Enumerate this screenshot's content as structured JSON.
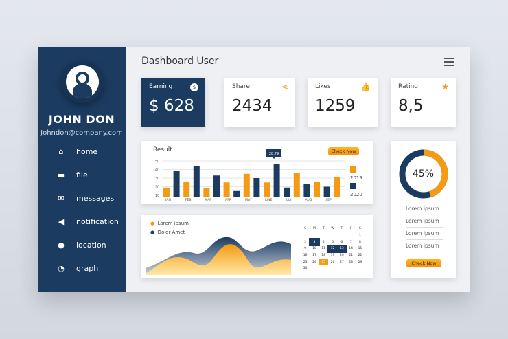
{
  "user": {
    "name": "JOHN DON",
    "email": "Johndon@company.com"
  },
  "nav": [
    {
      "label": "home",
      "icon": "home-icon",
      "g": "⌂"
    },
    {
      "label": "file",
      "icon": "folder-icon",
      "g": "▬"
    },
    {
      "label": "messages",
      "icon": "envelope-icon",
      "g": "✉"
    },
    {
      "label": "notification",
      "icon": "megaphone-icon",
      "g": "◀"
    },
    {
      "label": "location",
      "icon": "pin-icon",
      "g": "●"
    },
    {
      "label": "graph",
      "icon": "pie-chart-icon",
      "g": "◔"
    }
  ],
  "header": {
    "title": "Dashboard User"
  },
  "stats": [
    {
      "label": "Earning",
      "value": "$ 628",
      "icon": "dollar-icon",
      "g": "$"
    },
    {
      "label": "Share",
      "value": "2434",
      "icon": "share-icon",
      "g": "⋖"
    },
    {
      "label": "Likes",
      "value": "1259",
      "icon": "thumbs-up-icon",
      "g": "👍"
    },
    {
      "label": "Rating",
      "value": "8,5",
      "icon": "star-icon",
      "g": "★"
    }
  ],
  "colors": {
    "navy": "#1b3b61",
    "orange": "#f59a13"
  },
  "chart_data": {
    "type": "bar",
    "title": "Result",
    "categories": [
      "JAN",
      "FEB",
      "MAR",
      "APR",
      "MAY",
      "JUNE",
      "JULY",
      "AUG",
      "SEP"
    ],
    "bars": [
      [
        "2019",
        19
      ],
      [
        "2020",
        38
      ],
      [
        "2019",
        26
      ],
      [
        "2020",
        44
      ],
      [
        "2019",
        18
      ],
      [
        "2020",
        33
      ],
      [
        "2019",
        25
      ],
      [
        "2020",
        15
      ],
      [
        "2019",
        35
      ],
      [
        "2020",
        30
      ],
      [
        "2019",
        25
      ],
      [
        "2020",
        46
      ],
      [
        "2020",
        19
      ],
      [
        "2019",
        36
      ],
      [
        "2020",
        23
      ],
      [
        "2019",
        26
      ],
      [
        "2020",
        20
      ],
      [
        "2019",
        31
      ]
    ],
    "yticks": [
      10,
      20,
      30,
      40,
      50
    ],
    "ylim": [
      10,
      50
    ],
    "tooltip": "28,79",
    "legend": [
      "2019",
      "2020"
    ],
    "grid": true
  },
  "chart_button": "Check Now",
  "donut": {
    "percent": 45,
    "label": "45%",
    "items": [
      "Lorem ipsum",
      "Lorem ipsum",
      "Lorem ipsum",
      "Lorem ipsum"
    ],
    "button": "Check Now"
  },
  "area": {
    "legend": [
      "Lorem ipsum",
      "Dolor Amet"
    ]
  },
  "calendar": {
    "days": [
      "S",
      "M",
      "T",
      "W",
      "T",
      "F",
      "S"
    ],
    "first_offset": 6,
    "count": 30,
    "navy": [
      3,
      12,
      13
    ],
    "orange": [
      25
    ]
  }
}
